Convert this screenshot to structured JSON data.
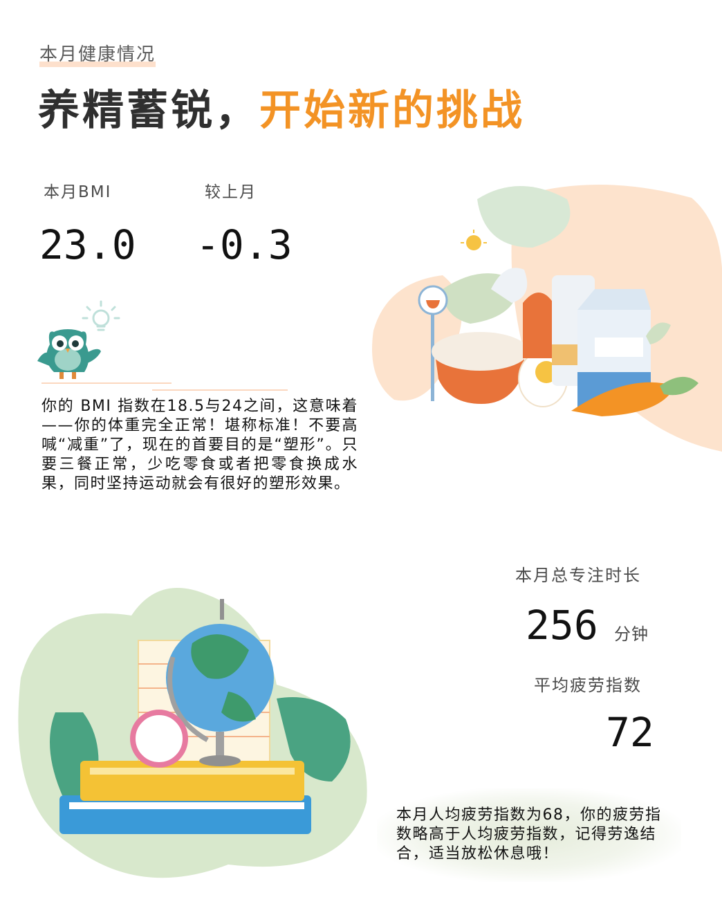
{
  "header": {
    "kicker": "本月健康情况",
    "headline_dark": "养精蓄锐，",
    "headline_accent": "开始新的挑战"
  },
  "bmi": {
    "label": "本月BMI",
    "value": "23.0",
    "delta_label": "较上月",
    "delta_value": "-0.3"
  },
  "bmi_text": "你的 BMI 指数在18.5与24之间，这意味着——你的体重完全正常！堪称标准！不要高喊“减重”了，现在的首要目的是“塑形”。只要三餐正常，少吃零食或者把零食换成水果，同时坚持运动就会有很好的塑形效果。",
  "focus": {
    "label": "本月总专注时长",
    "value": "256",
    "unit": "分钟"
  },
  "fatigue": {
    "label": "平均疲劳指数",
    "value": "72",
    "note": "本月人均疲劳指数为68，你的疲劳指数略高于人均疲劳指数，记得劳逸结合，适当放松休息哦！"
  },
  "colors": {
    "accent": "#f39325",
    "underline": "#fde0cc",
    "leaf_green": "#cfe0c3",
    "peach": "#fde3cd"
  },
  "icons": {
    "owl": "owl-icon",
    "bulb": "lightbulb-icon"
  }
}
